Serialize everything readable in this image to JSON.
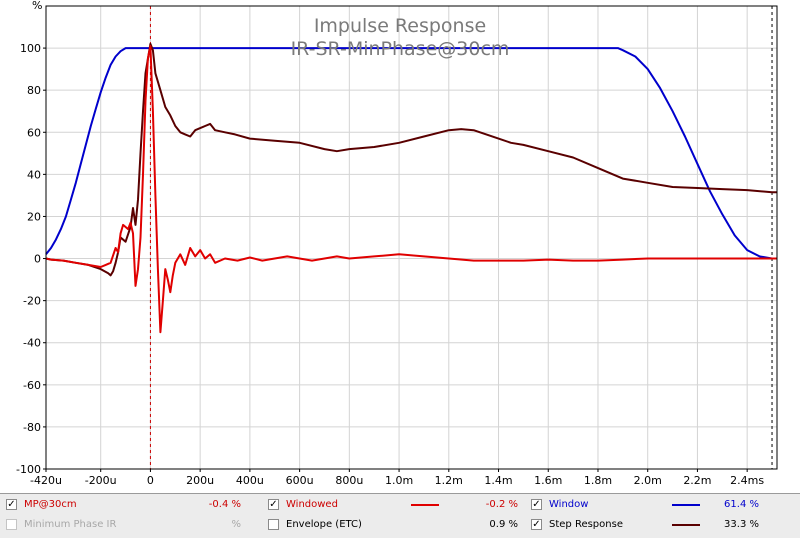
{
  "chart_data": {
    "type": "line",
    "title": "Impulse Response",
    "subtitle": "IR-SR-MinPhase@30cm",
    "ylabel": "%",
    "xlim": [
      -0.00042,
      0.00252
    ],
    "ylim": [
      -100,
      120
    ],
    "x_ticks": [
      {
        "v": -0.00042,
        "label": "-420u"
      },
      {
        "v": -0.0002,
        "label": "-200u"
      },
      {
        "v": 0,
        "label": "0"
      },
      {
        "v": 0.0002,
        "label": "200u"
      },
      {
        "v": 0.0004,
        "label": "400u"
      },
      {
        "v": 0.0006,
        "label": "600u"
      },
      {
        "v": 0.0008,
        "label": "800u"
      },
      {
        "v": 0.001,
        "label": "1.0m"
      },
      {
        "v": 0.0012,
        "label": "1.2m"
      },
      {
        "v": 0.0014,
        "label": "1.4m"
      },
      {
        "v": 0.0016,
        "label": "1.6m"
      },
      {
        "v": 0.0018,
        "label": "1.8m"
      },
      {
        "v": 0.002,
        "label": "2.0m"
      },
      {
        "v": 0.0022,
        "label": "2.2m"
      },
      {
        "v": 0.0024,
        "label": "2.4ms"
      }
    ],
    "y_ticks": [
      -100,
      -80,
      -60,
      -40,
      -20,
      0,
      20,
      40,
      60,
      80,
      100
    ],
    "grid": true,
    "markers": [
      {
        "x": 0,
        "color": "#cc0000",
        "style": "dashed"
      },
      {
        "x": 0.0025,
        "color": "#000000",
        "style": "dashed"
      }
    ],
    "series": [
      {
        "name": "Window",
        "color": "#0000cc",
        "points": [
          [
            -0.00042,
            2
          ],
          [
            -0.0004,
            5
          ],
          [
            -0.00038,
            9
          ],
          [
            -0.00036,
            14
          ],
          [
            -0.00034,
            20
          ],
          [
            -0.00032,
            28
          ],
          [
            -0.0003,
            36
          ],
          [
            -0.00028,
            45
          ],
          [
            -0.00026,
            54
          ],
          [
            -0.00024,
            63
          ],
          [
            -0.00022,
            71
          ],
          [
            -0.0002,
            79
          ],
          [
            -0.00018,
            86
          ],
          [
            -0.00016,
            92
          ],
          [
            -0.00014,
            96
          ],
          [
            -0.00012,
            98.5
          ],
          [
            -0.0001,
            100
          ],
          [
            -5e-05,
            100
          ],
          [
            0,
            100
          ],
          [
            0.0005,
            100
          ],
          [
            0.001,
            100
          ],
          [
            0.0015,
            100
          ],
          [
            0.00188,
            100
          ],
          [
            0.0019,
            99
          ],
          [
            0.00195,
            96
          ],
          [
            0.002,
            90
          ],
          [
            0.00205,
            81
          ],
          [
            0.0021,
            70
          ],
          [
            0.00215,
            58
          ],
          [
            0.0022,
            45
          ],
          [
            0.00225,
            32
          ],
          [
            0.0023,
            21
          ],
          [
            0.00235,
            11
          ],
          [
            0.0024,
            4
          ],
          [
            0.00245,
            1
          ],
          [
            0.0025,
            0
          ],
          [
            0.00252,
            0
          ]
        ]
      },
      {
        "name": "Step Response",
        "color": "#5a0000",
        "points": [
          [
            -0.00042,
            0
          ],
          [
            -0.0004,
            -0.5
          ],
          [
            -0.00035,
            -1
          ],
          [
            -0.0003,
            -2
          ],
          [
            -0.00025,
            -3
          ],
          [
            -0.0002,
            -5
          ],
          [
            -0.00017,
            -7
          ],
          [
            -0.00016,
            -8
          ],
          [
            -0.00015,
            -6
          ],
          [
            -0.00014,
            -2
          ],
          [
            -0.00013,
            3
          ],
          [
            -0.00012,
            10
          ],
          [
            -0.0001,
            8
          ],
          [
            -8e-05,
            15
          ],
          [
            -7e-05,
            24
          ],
          [
            -6e-05,
            16
          ],
          [
            -5e-05,
            28
          ],
          [
            -4e-05,
            50
          ],
          [
            -3e-05,
            70
          ],
          [
            -2e-05,
            88
          ],
          [
            0,
            102
          ],
          [
            1e-05,
            99
          ],
          [
            2e-05,
            88
          ],
          [
            4e-05,
            80
          ],
          [
            6e-05,
            72
          ],
          [
            8e-05,
            68
          ],
          [
            0.0001,
            63
          ],
          [
            0.00012,
            60
          ],
          [
            0.00014,
            59
          ],
          [
            0.00016,
            58
          ],
          [
            0.00018,
            61
          ],
          [
            0.0002,
            62
          ],
          [
            0.00022,
            63
          ],
          [
            0.00024,
            64
          ],
          [
            0.00026,
            61
          ],
          [
            0.0003,
            60
          ],
          [
            0.00034,
            59
          ],
          [
            0.0004,
            57
          ],
          [
            0.0005,
            56
          ],
          [
            0.0006,
            55
          ],
          [
            0.0007,
            52
          ],
          [
            0.00075,
            51
          ],
          [
            0.0008,
            52
          ],
          [
            0.0009,
            53
          ],
          [
            0.001,
            55
          ],
          [
            0.0011,
            58
          ],
          [
            0.0012,
            61
          ],
          [
            0.00125,
            61.5
          ],
          [
            0.0013,
            61
          ],
          [
            0.0014,
            57
          ],
          [
            0.00145,
            55
          ],
          [
            0.0015,
            54
          ],
          [
            0.0016,
            51
          ],
          [
            0.0017,
            48
          ],
          [
            0.0018,
            43
          ],
          [
            0.0019,
            38
          ],
          [
            0.002,
            36
          ],
          [
            0.0021,
            34
          ],
          [
            0.0022,
            33.5
          ],
          [
            0.0023,
            33
          ],
          [
            0.0024,
            32.5
          ],
          [
            0.0025,
            31.5
          ],
          [
            0.00252,
            31.5
          ]
        ]
      },
      {
        "name": "MP@30cm",
        "color": "#e00000",
        "points": [
          [
            -0.00042,
            0
          ],
          [
            -0.0004,
            -0.5
          ],
          [
            -0.00035,
            -1
          ],
          [
            -0.0003,
            -2
          ],
          [
            -0.00025,
            -3
          ],
          [
            -0.0002,
            -4
          ],
          [
            -0.00018,
            -3
          ],
          [
            -0.00016,
            -2
          ],
          [
            -0.00014,
            5
          ],
          [
            -0.00013,
            3
          ],
          [
            -0.00012,
            12
          ],
          [
            -0.00011,
            16
          ],
          [
            -0.0001,
            15
          ],
          [
            -9e-05,
            14
          ],
          [
            -8e-05,
            17
          ],
          [
            -7e-05,
            12
          ],
          [
            -6e-05,
            -13
          ],
          [
            -5e-05,
            -5
          ],
          [
            -4e-05,
            10
          ],
          [
            -3e-05,
            40
          ],
          [
            -2e-05,
            75
          ],
          [
            -1e-05,
            95
          ],
          [
            0,
            101
          ],
          [
            1e-05,
            70
          ],
          [
            2e-05,
            30
          ],
          [
            3e-05,
            -5
          ],
          [
            4e-05,
            -35
          ],
          [
            5e-05,
            -20
          ],
          [
            6e-05,
            -5
          ],
          [
            7e-05,
            -10
          ],
          [
            8e-05,
            -16
          ],
          [
            9e-05,
            -8
          ],
          [
            0.0001,
            -2
          ],
          [
            0.00012,
            2
          ],
          [
            0.00014,
            -3
          ],
          [
            0.00016,
            5
          ],
          [
            0.00018,
            1
          ],
          [
            0.0002,
            4
          ],
          [
            0.00022,
            0
          ],
          [
            0.00024,
            2
          ],
          [
            0.00026,
            -2
          ],
          [
            0.0003,
            0
          ],
          [
            0.00035,
            -1
          ],
          [
            0.0004,
            0.5
          ],
          [
            0.00045,
            -1
          ],
          [
            0.0005,
            0
          ],
          [
            0.00055,
            1
          ],
          [
            0.0006,
            0
          ],
          [
            0.00065,
            -1
          ],
          [
            0.0007,
            0
          ],
          [
            0.00075,
            1
          ],
          [
            0.0008,
            0
          ],
          [
            0.0009,
            1
          ],
          [
            0.001,
            2
          ],
          [
            0.0011,
            1
          ],
          [
            0.0012,
            0
          ],
          [
            0.0013,
            -1
          ],
          [
            0.0014,
            -1
          ],
          [
            0.0015,
            -1
          ],
          [
            0.0016,
            -0.5
          ],
          [
            0.0017,
            -1
          ],
          [
            0.0018,
            -1
          ],
          [
            0.0019,
            -0.5
          ],
          [
            0.002,
            0
          ],
          [
            0.0022,
            0
          ],
          [
            0.0024,
            0
          ],
          [
            0.0025,
            0
          ],
          [
            0.00252,
            0
          ]
        ]
      }
    ]
  },
  "legend": {
    "items": [
      {
        "label": "MP@30cm",
        "checked": true,
        "enabled": true,
        "label_color": "#cc0000",
        "value": "-0.4 %",
        "swatch": ""
      },
      {
        "label": "Minimum Phase IR",
        "checked": false,
        "enabled": false,
        "label_color": "#a8a8a8",
        "value": "%",
        "swatch": ""
      },
      {
        "label": "Windowed",
        "checked": true,
        "enabled": true,
        "label_color": "#cc0000",
        "value": "-0.2 %",
        "swatch": "#e00000"
      },
      {
        "label": "Envelope (ETC)",
        "checked": false,
        "enabled": true,
        "label_color": "#000000",
        "value": "0.9 %",
        "swatch": ""
      },
      {
        "label": "Window",
        "checked": true,
        "enabled": true,
        "label_color": "#0000cc",
        "value": "61.4 %",
        "swatch": "#0000cc"
      },
      {
        "label": "Step Response",
        "checked": true,
        "enabled": true,
        "label_color": "#000000",
        "value": "33.3 %",
        "swatch": "#5a0000"
      }
    ]
  }
}
